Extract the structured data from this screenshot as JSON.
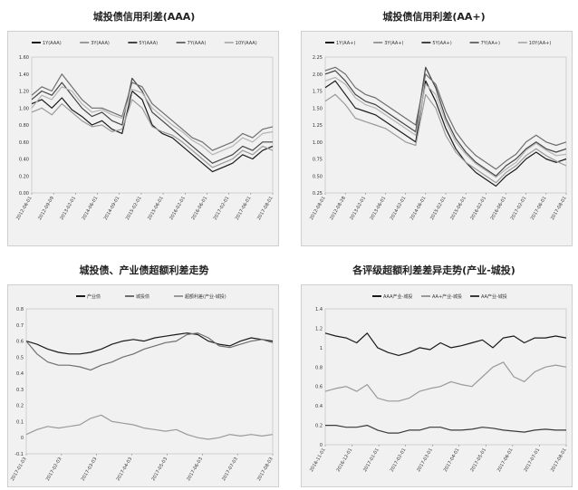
{
  "charts": [
    {
      "title": "城投债信用利差(AAA)",
      "chart_data": {
        "type": "line",
        "title": "城投债信用利差(AAA)",
        "xlabel": "",
        "ylabel": "",
        "ylim": [
          0,
          1.6
        ],
        "yticks": [
          "0.00",
          "0.20",
          "0.40",
          "0.60",
          "0.80",
          "1.00",
          "1.20",
          "1.40",
          "1.60"
        ],
        "xticks": [
          "2012-06-01",
          "2012-09-09",
          "2013-02-01",
          "2014-06-01",
          "2014-09-01",
          "2015-02-01",
          "2015-06-01",
          "2016-02-01",
          "2016-06-01",
          "2017-02-01",
          "2017-06-01",
          "2017-08-01"
        ],
        "legend": [
          "1Y(AAA)",
          "3Y(AAA)",
          "5Y(AAA)",
          "7Y(AAA)",
          "10Y(AAA)"
        ],
        "legend_position": "top",
        "series": [
          {
            "name": "1Y(AAA)",
            "color": "#1a1a1a",
            "values": [
              1.05,
              1.1,
              1.0,
              1.12,
              0.98,
              0.9,
              0.8,
              0.85,
              0.75,
              0.7,
              1.2,
              1.1,
              0.8,
              0.7,
              0.65,
              0.55,
              0.45,
              0.35,
              0.25,
              0.3,
              0.35,
              0.45,
              0.4,
              0.5,
              0.55
            ]
          },
          {
            "name": "3Y(AAA)",
            "color": "#9a9a9a",
            "values": [
              0.95,
              1.0,
              0.92,
              1.05,
              0.95,
              0.85,
              0.78,
              0.8,
              0.72,
              0.75,
              1.1,
              1.0,
              0.78,
              0.72,
              0.68,
              0.6,
              0.5,
              0.4,
              0.3,
              0.35,
              0.4,
              0.5,
              0.45,
              0.55,
              0.5
            ]
          },
          {
            "name": "5Y(AAA)",
            "color": "#444444",
            "values": [
              1.1,
              1.2,
              1.15,
              1.3,
              1.15,
              1.0,
              0.9,
              0.95,
              0.85,
              0.8,
              1.35,
              1.2,
              0.95,
              0.85,
              0.75,
              0.65,
              0.55,
              0.45,
              0.35,
              0.4,
              0.45,
              0.55,
              0.5,
              0.6,
              0.6
            ]
          },
          {
            "name": "7Y(AAA)",
            "color": "#6e6e6e",
            "values": [
              1.15,
              1.25,
              1.2,
              1.4,
              1.25,
              1.1,
              1.0,
              1.0,
              0.95,
              0.9,
              1.3,
              1.25,
              1.05,
              0.95,
              0.85,
              0.75,
              0.65,
              0.6,
              0.5,
              0.55,
              0.6,
              0.7,
              0.65,
              0.75,
              0.78
            ]
          },
          {
            "name": "10Y(AAA)",
            "color": "#b4b4b4",
            "values": [
              1.0,
              1.15,
              1.1,
              1.25,
              1.2,
              1.05,
              0.95,
              0.98,
              0.92,
              0.88,
              1.22,
              1.18,
              1.0,
              0.9,
              0.8,
              0.72,
              0.62,
              0.55,
              0.45,
              0.5,
              0.55,
              0.65,
              0.6,
              0.7,
              0.72
            ]
          }
        ]
      }
    },
    {
      "title": "城投债信用利差(AA+)",
      "chart_data": {
        "type": "line",
        "title": "城投债信用利差(AA+)",
        "xlabel": "",
        "ylabel": "",
        "ylim": [
          0.25,
          2.25
        ],
        "yticks": [
          "0.25",
          "0.50",
          "0.75",
          "1.00",
          "1.25",
          "1.50",
          "1.75",
          "2.00",
          "2.25"
        ],
        "xticks": [
          "2012-08-01",
          "2012-08-28",
          "2013-02-01",
          "2013-06-01",
          "2014-02-01",
          "2014-06-01",
          "2015-02-01",
          "2015-06-01",
          "2016-02-01",
          "2016-06-01",
          "2017-02-01",
          "2017-06-01",
          "2017-08-01"
        ],
        "legend": [
          "1Y(AA+)",
          "3Y(AA+)",
          "5Y(AA+)",
          "7Y(AA+)",
          "10Y(AA+)"
        ],
        "legend_position": "top",
        "series": [
          {
            "name": "1Y(AA+)",
            "color": "#1a1a1a",
            "values": [
              1.8,
              1.9,
              1.7,
              1.5,
              1.45,
              1.4,
              1.3,
              1.2,
              1.1,
              1.0,
              1.9,
              1.6,
              1.2,
              0.9,
              0.7,
              0.55,
              0.45,
              0.35,
              0.5,
              0.6,
              0.75,
              0.85,
              0.75,
              0.7,
              0.75
            ]
          },
          {
            "name": "3Y(AA+)",
            "color": "#9a9a9a",
            "values": [
              1.6,
              1.7,
              1.55,
              1.35,
              1.3,
              1.25,
              1.2,
              1.1,
              1.0,
              0.95,
              1.7,
              1.5,
              1.1,
              0.85,
              0.7,
              0.6,
              0.5,
              0.4,
              0.55,
              0.65,
              0.8,
              0.9,
              0.8,
              0.72,
              0.65
            ]
          },
          {
            "name": "5Y(AA+)",
            "color": "#444444",
            "values": [
              2.0,
              2.05,
              1.9,
              1.7,
              1.6,
              1.55,
              1.45,
              1.35,
              1.25,
              1.15,
              2.1,
              1.8,
              1.35,
              1.05,
              0.85,
              0.7,
              0.6,
              0.5,
              0.65,
              0.75,
              0.9,
              1.0,
              0.9,
              0.85,
              0.9
            ]
          },
          {
            "name": "7Y(AA+)",
            "color": "#6e6e6e",
            "values": [
              2.05,
              2.1,
              2.0,
              1.8,
              1.7,
              1.65,
              1.55,
              1.45,
              1.35,
              1.25,
              2.0,
              1.85,
              1.45,
              1.15,
              0.95,
              0.8,
              0.7,
              0.6,
              0.72,
              0.82,
              1.0,
              1.1,
              1.0,
              0.95,
              1.0
            ]
          },
          {
            "name": "10Y(AA+)",
            "color": "#b4b4b4",
            "values": [
              1.9,
              1.95,
              1.85,
              1.65,
              1.55,
              1.5,
              1.4,
              1.3,
              1.2,
              1.1,
              1.85,
              1.7,
              1.3,
              1.0,
              0.82,
              0.68,
              0.58,
              0.48,
              0.6,
              0.7,
              0.88,
              0.98,
              0.88,
              0.8,
              0.82
            ]
          }
        ]
      }
    },
    {
      "title": "城投债、产业债超额利差走势",
      "chart_data": {
        "type": "line",
        "title": "城投债、产业债超额利差走势",
        "xlabel": "",
        "ylabel": "",
        "ylim": [
          -0.1,
          0.8
        ],
        "yticks": [
          "-0.1",
          "0",
          "0.1",
          "0.2",
          "0.3",
          "0.4",
          "0.5",
          "0.6",
          "0.7",
          "0.8"
        ],
        "xticks": [
          "2017-01-03",
          "2017-02-03",
          "2017-03-03",
          "2017-04-03",
          "2017-05-03",
          "2017-06-03",
          "2017-07-03",
          "2017-08-03"
        ],
        "legend": [
          "产业债",
          "城投债",
          "超额利差(产业-城投)"
        ],
        "legend_position": "top",
        "series": [
          {
            "name": "产业债",
            "color": "#1a1a1a",
            "values": [
              0.6,
              0.58,
              0.55,
              0.53,
              0.52,
              0.52,
              0.53,
              0.55,
              0.58,
              0.6,
              0.61,
              0.6,
              0.62,
              0.63,
              0.64,
              0.65,
              0.64,
              0.6,
              0.58,
              0.57,
              0.6,
              0.62,
              0.61,
              0.6
            ]
          },
          {
            "name": "城投债",
            "color": "#6e6e6e",
            "values": [
              0.6,
              0.52,
              0.47,
              0.45,
              0.45,
              0.44,
              0.42,
              0.45,
              0.47,
              0.5,
              0.52,
              0.55,
              0.57,
              0.59,
              0.6,
              0.64,
              0.65,
              0.62,
              0.57,
              0.56,
              0.58,
              0.6,
              0.61,
              0.59
            ]
          },
          {
            "name": "超额利差(产业-城投)",
            "color": "#9a9a9a",
            "values": [
              0.02,
              0.05,
              0.07,
              0.06,
              0.07,
              0.08,
              0.12,
              0.14,
              0.1,
              0.09,
              0.08,
              0.06,
              0.05,
              0.04,
              0.05,
              0.02,
              0.0,
              -0.01,
              0.0,
              0.02,
              0.01,
              0.02,
              0.01,
              0.02
            ]
          }
        ]
      }
    },
    {
      "title": "各评级超额利差差异走势(产业-城投)",
      "chart_data": {
        "type": "line",
        "title": "各评级超额利差差异走势(产业-城投)",
        "xlabel": "",
        "ylabel": "",
        "ylim": [
          0,
          1.4
        ],
        "yticks": [
          "0",
          "0.2",
          "0.4",
          "0.6",
          "0.8",
          "1",
          "1.2",
          "1.4"
        ],
        "xticks": [
          "2016-11-01",
          "2016-12-01",
          "2017-01-01",
          "2017-02-01",
          "2017-03-01",
          "2017-04-01",
          "2017-05-01",
          "2017-06-01",
          "2017-07-01",
          "2017-08-01"
        ],
        "legend": [
          "AAA产业-城投",
          "AA+产业-城投",
          "AA产业-城投"
        ],
        "legend_position": "top",
        "series": [
          {
            "name": "AAA产业-城投",
            "color": "#1a1a1a",
            "values": [
              1.15,
              1.12,
              1.1,
              1.05,
              1.15,
              1.0,
              0.95,
              0.92,
              0.95,
              1.0,
              0.98,
              1.05,
              1.0,
              1.02,
              1.05,
              1.08,
              1.0,
              1.1,
              1.12,
              1.05,
              1.1,
              1.1,
              1.12,
              1.1
            ]
          },
          {
            "name": "AA+产业-城投",
            "color": "#9a9a9a",
            "values": [
              0.55,
              0.58,
              0.6,
              0.55,
              0.62,
              0.48,
              0.45,
              0.45,
              0.48,
              0.55,
              0.58,
              0.6,
              0.65,
              0.62,
              0.6,
              0.7,
              0.8,
              0.85,
              0.7,
              0.65,
              0.75,
              0.8,
              0.82,
              0.8
            ]
          },
          {
            "name": "AA产业-城投",
            "color": "#3a3a3a",
            "values": [
              0.2,
              0.2,
              0.18,
              0.18,
              0.2,
              0.15,
              0.12,
              0.12,
              0.15,
              0.15,
              0.18,
              0.18,
              0.15,
              0.15,
              0.16,
              0.18,
              0.17,
              0.15,
              0.14,
              0.13,
              0.15,
              0.16,
              0.15,
              0.15
            ]
          }
        ]
      }
    }
  ]
}
